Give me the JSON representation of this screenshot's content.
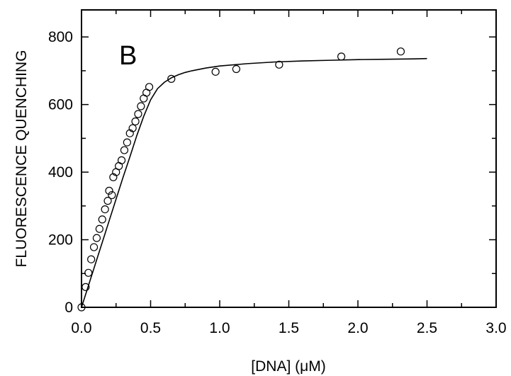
{
  "chart_data": {
    "type": "scatter",
    "panel_label": "B",
    "xlabel": "[DNA]   (μM)",
    "ylabel": "FLUORESCENCE QUENCHING",
    "xlim": [
      0,
      3.0
    ],
    "ylim": [
      0,
      880
    ],
    "x_ticks": [
      0,
      0.5,
      1.0,
      1.5,
      2.0,
      2.5,
      3.0
    ],
    "x_tick_labels": [
      "0.0",
      "0.5",
      "1.0",
      "1.5",
      "2.0",
      "2.5",
      "3.0"
    ],
    "x_minor_ticks": [
      0.25,
      0.75,
      1.25,
      1.75,
      2.25,
      2.75
    ],
    "y_ticks": [
      0,
      200,
      400,
      600,
      800
    ],
    "y_tick_labels": [
      "0",
      "200",
      "400",
      "600",
      "800"
    ],
    "y_minor_ticks": [
      100,
      300,
      500,
      700
    ],
    "grid": false,
    "series": [
      {
        "type": "scatter",
        "marker": "open-circle",
        "x": [
          0.0,
          0.03,
          0.05,
          0.07,
          0.09,
          0.11,
          0.13,
          0.15,
          0.17,
          0.19,
          0.2,
          0.22,
          0.23,
          0.25,
          0.27,
          0.29,
          0.31,
          0.33,
          0.35,
          0.37,
          0.39,
          0.41,
          0.43,
          0.45,
          0.47,
          0.49,
          0.65,
          0.97,
          1.12,
          1.43,
          1.88,
          2.31
        ],
        "y": [
          0,
          60,
          102,
          142,
          178,
          205,
          232,
          260,
          290,
          315,
          345,
          332,
          385,
          400,
          418,
          435,
          465,
          488,
          515,
          530,
          550,
          572,
          595,
          618,
          635,
          652,
          676,
          697,
          705,
          718,
          742,
          757
        ]
      },
      {
        "type": "line",
        "x": [
          0.0,
          0.05,
          0.1,
          0.15,
          0.2,
          0.25,
          0.3,
          0.35,
          0.4,
          0.45,
          0.5,
          0.55,
          0.6,
          0.65,
          0.7,
          0.75,
          0.8,
          0.9,
          1.0,
          1.2,
          1.4,
          1.6,
          1.8,
          2.0,
          2.2,
          2.4,
          2.5
        ],
        "y": [
          0,
          64,
          128,
          192,
          256,
          320,
          384,
          445,
          508,
          565,
          614,
          647,
          666,
          679,
          688,
          695,
          700,
          708,
          714,
          721,
          726,
          729,
          731,
          733,
          734,
          735,
          736
        ]
      }
    ]
  }
}
